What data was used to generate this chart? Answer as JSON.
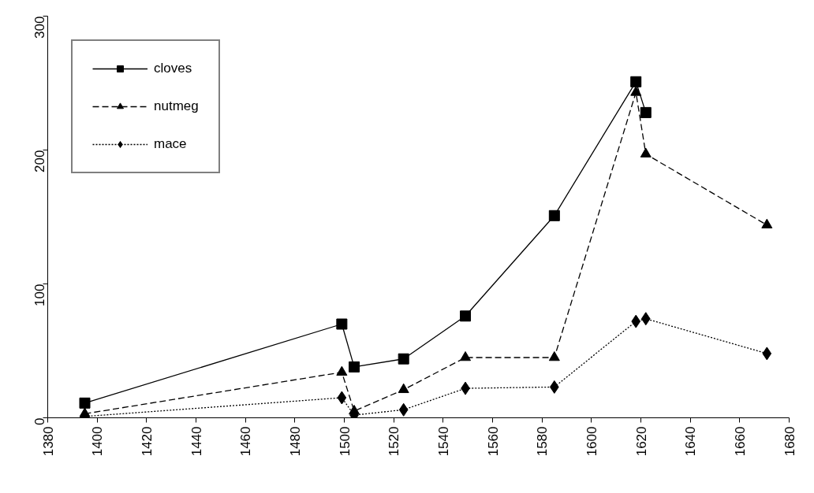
{
  "chart_data": {
    "type": "line",
    "x": [
      1395,
      1499,
      1504,
      1524,
      1549,
      1585,
      1618,
      1622,
      1671
    ],
    "series": [
      {
        "name": "cloves",
        "color": "#000000",
        "marker": "square",
        "line_style": "solid",
        "values": [
          11,
          70,
          38,
          44,
          76,
          151,
          251,
          228,
          null
        ]
      },
      {
        "name": "nutmeg",
        "color": "#000000",
        "marker": "triangle",
        "line_style": "dashed",
        "values": [
          3,
          34,
          5,
          21,
          45,
          45,
          243,
          197,
          144
        ]
      },
      {
        "name": "mace",
        "color": "#000000",
        "marker": "diamond",
        "line_style": "dotted",
        "values": [
          1,
          15,
          2,
          6,
          22,
          23,
          72,
          74,
          48
        ]
      }
    ],
    "xlim": [
      1380,
      1680
    ],
    "xticks": [
      1380,
      1400,
      1420,
      1440,
      1460,
      1480,
      1500,
      1520,
      1540,
      1560,
      1580,
      1600,
      1620,
      1640,
      1660,
      1680
    ],
    "ylim": [
      0,
      300
    ],
    "yticks": [
      0,
      100,
      200,
      300
    ],
    "grid": false,
    "legend": "top left"
  }
}
